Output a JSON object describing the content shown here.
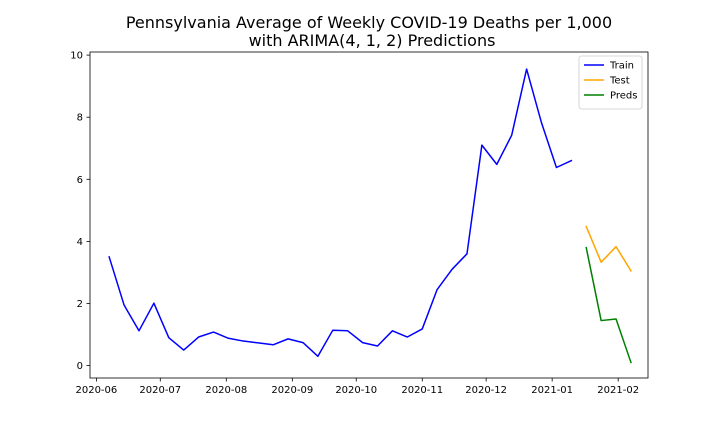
{
  "chart_data": {
    "type": "line",
    "title_lines": [
      "Pennsylvania Average of Weekly COVID-19 Deaths per 1,000",
      "with ARIMA(4, 1, 2) Predictions"
    ],
    "xlabel": "",
    "ylabel": "",
    "x_axis": {
      "type": "date",
      "range": [
        "2020-05-29",
        "2021-02-15"
      ],
      "ticks": [
        "2020-06-01",
        "2020-07-01",
        "2020-08-01",
        "2020-09-01",
        "2020-10-01",
        "2020-11-01",
        "2020-12-01",
        "2021-01-01",
        "2021-02-01"
      ],
      "tick_labels": [
        "2020-06",
        "2020-07",
        "2020-08",
        "2020-09",
        "2020-10",
        "2020-11",
        "2020-12",
        "2021-01",
        "2021-02"
      ]
    },
    "y_axis": {
      "range": [
        -0.4,
        10.1
      ],
      "ticks": [
        0,
        2,
        4,
        6,
        8,
        10
      ],
      "tick_labels": [
        "0",
        "2",
        "4",
        "6",
        "8",
        "10"
      ]
    },
    "grid": false,
    "legend": {
      "placement": "top-right"
    },
    "series": [
      {
        "name": "Train",
        "color": "#0000ff",
        "points": [
          {
            "x": "2020-06-07",
            "y": 3.5
          },
          {
            "x": "2020-06-14",
            "y": 1.95
          },
          {
            "x": "2020-06-21",
            "y": 1.12
          },
          {
            "x": "2020-06-28",
            "y": 2.01
          },
          {
            "x": "2020-07-05",
            "y": 0.9
          },
          {
            "x": "2020-07-12",
            "y": 0.5
          },
          {
            "x": "2020-07-19",
            "y": 0.92
          },
          {
            "x": "2020-07-26",
            "y": 1.08
          },
          {
            "x": "2020-08-02",
            "y": 0.88
          },
          {
            "x": "2020-08-09",
            "y": 0.79
          },
          {
            "x": "2020-08-16",
            "y": 0.73
          },
          {
            "x": "2020-08-23",
            "y": 0.67
          },
          {
            "x": "2020-08-30",
            "y": 0.86
          },
          {
            "x": "2020-09-06",
            "y": 0.74
          },
          {
            "x": "2020-09-13",
            "y": 0.3
          },
          {
            "x": "2020-09-20",
            "y": 1.14
          },
          {
            "x": "2020-09-27",
            "y": 1.12
          },
          {
            "x": "2020-10-04",
            "y": 0.74
          },
          {
            "x": "2020-10-11",
            "y": 0.63
          },
          {
            "x": "2020-10-18",
            "y": 1.12
          },
          {
            "x": "2020-10-25",
            "y": 0.92
          },
          {
            "x": "2020-11-01",
            "y": 1.18
          },
          {
            "x": "2020-11-08",
            "y": 2.45
          },
          {
            "x": "2020-11-15",
            "y": 3.1
          },
          {
            "x": "2020-11-22",
            "y": 3.6
          },
          {
            "x": "2020-11-29",
            "y": 7.1
          },
          {
            "x": "2020-12-06",
            "y": 6.48
          },
          {
            "x": "2020-12-13",
            "y": 7.42
          },
          {
            "x": "2020-12-20",
            "y": 9.55
          },
          {
            "x": "2020-12-27",
            "y": 7.82
          },
          {
            "x": "2021-01-03",
            "y": 6.38
          },
          {
            "x": "2021-01-10",
            "y": 6.6
          }
        ]
      },
      {
        "name": "Test",
        "color": "#ffa500",
        "points": [
          {
            "x": "2021-01-17",
            "y": 4.48
          },
          {
            "x": "2021-01-24",
            "y": 3.33
          },
          {
            "x": "2021-01-31",
            "y": 3.83
          },
          {
            "x": "2021-02-07",
            "y": 3.05
          }
        ]
      },
      {
        "name": "Preds",
        "color": "#008000",
        "points": [
          {
            "x": "2021-01-17",
            "y": 3.8
          },
          {
            "x": "2021-01-24",
            "y": 1.45
          },
          {
            "x": "2021-01-31",
            "y": 1.5
          },
          {
            "x": "2021-02-07",
            "y": 0.1
          }
        ]
      }
    ]
  }
}
